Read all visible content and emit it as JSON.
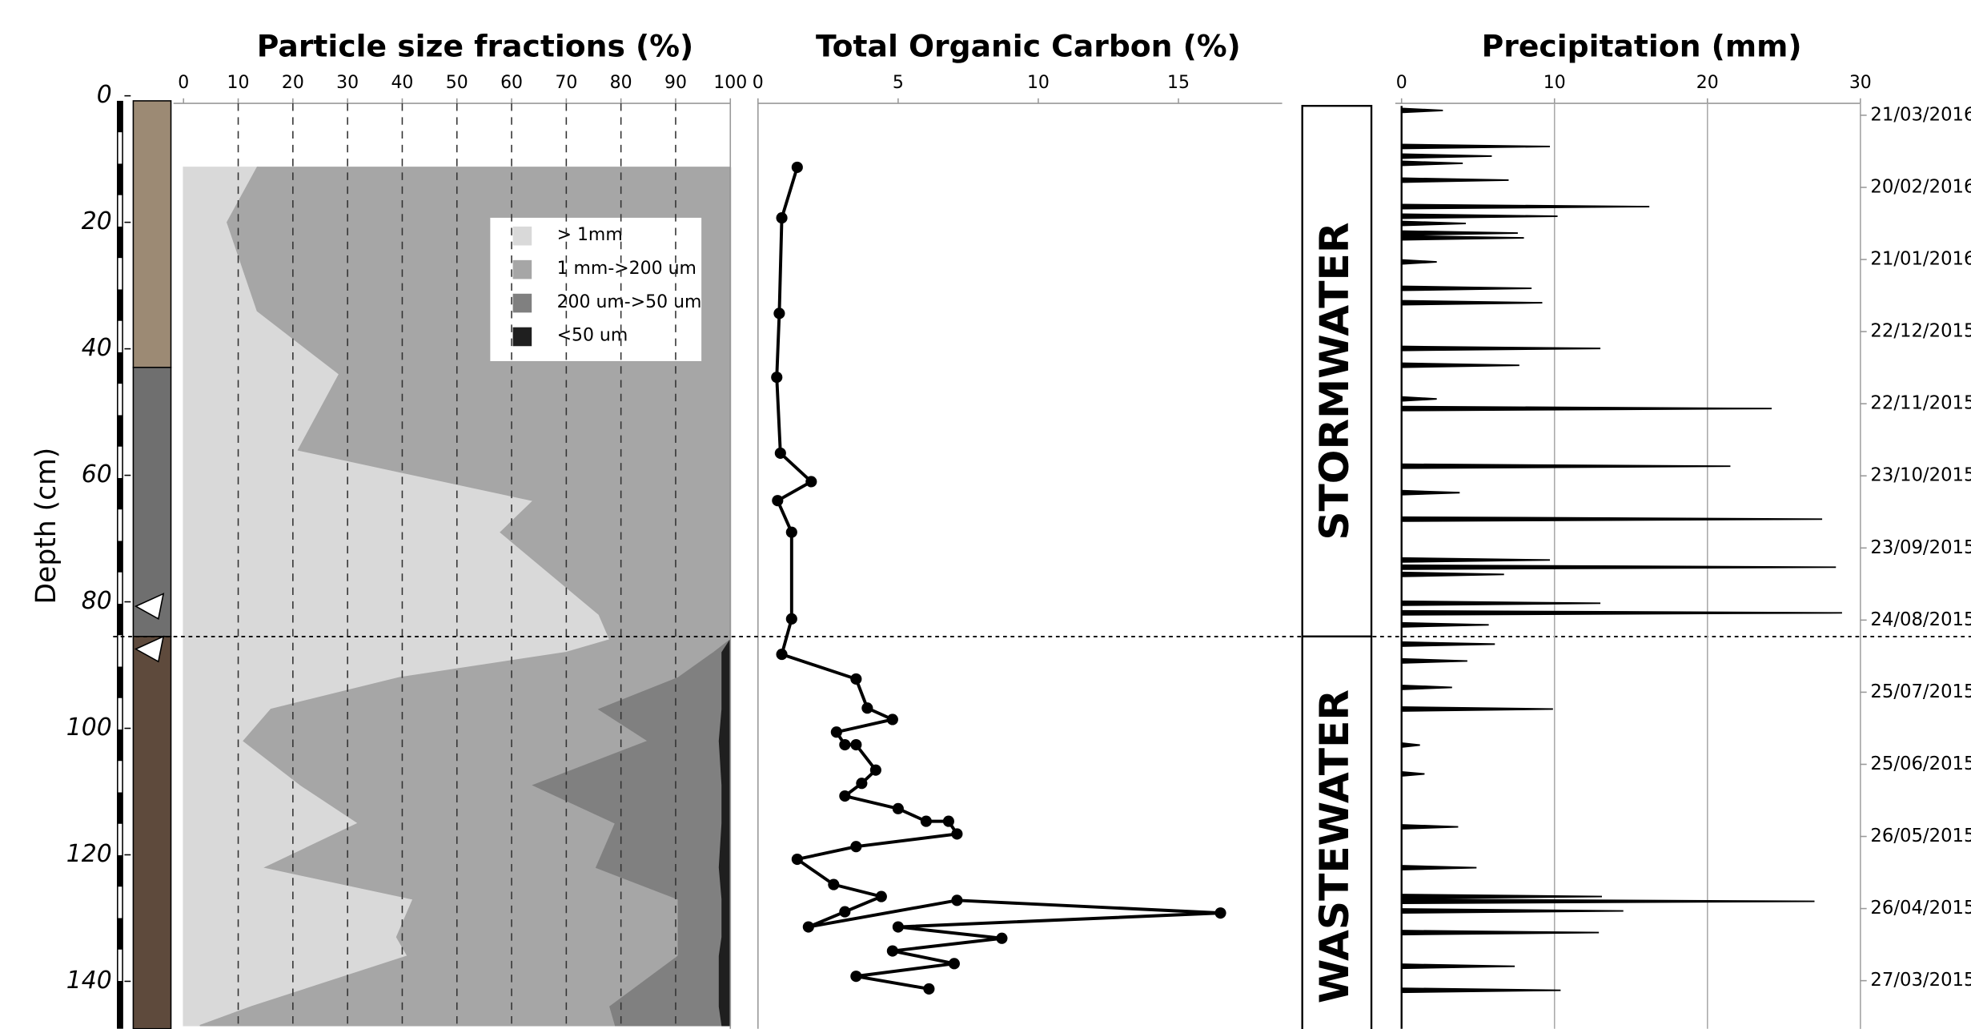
{
  "chart_data": [
    {
      "type": "area",
      "title": "Particle size fractions (%)",
      "y_label": "Depth (cm)",
      "y": [
        11.3,
        20,
        34,
        44,
        56,
        64,
        69,
        82,
        86,
        88,
        92,
        97,
        102,
        109,
        115,
        122,
        127,
        133,
        136,
        144,
        147
      ],
      "series": [
        {
          "name": "> 1mm",
          "color": "#d9d9d9",
          "values": [
            13.5,
            8,
            13.5,
            28.5,
            21,
            64,
            58,
            76,
            78,
            70,
            39.5,
            16,
            11,
            21.5,
            32,
            15,
            42,
            39,
            41,
            12.5,
            3
          ]
        },
        {
          "name": "1 mm->200 um",
          "color": "#a6a6a6",
          "values": [
            86.5,
            92,
            86.5,
            71.5,
            79,
            36,
            42,
            24,
            22,
            27,
            51,
            60,
            74,
            42.5,
            47,
            60.5,
            48.5,
            51.5,
            49.5,
            65.5,
            76
          ]
        },
        {
          "name": "200 um->50 um",
          "color": "#808080",
          "values": [
            0,
            0,
            0,
            0,
            0,
            0,
            0,
            0,
            0,
            1.5,
            8,
            22.5,
            13,
            34.5,
            19.5,
            22.5,
            8,
            8,
            7.5,
            20,
            19.5
          ]
        },
        {
          "name": "<50 um",
          "color": "#1f1f1f",
          "values": [
            0,
            0,
            0,
            0,
            0,
            0,
            0,
            0,
            0,
            1.5,
            1.5,
            1.5,
            2,
            1.5,
            1.5,
            2,
            1.5,
            1.5,
            2,
            2,
            1.5
          ]
        }
      ],
      "xlim": [
        0,
        100
      ],
      "xticks": [
        0,
        10,
        20,
        30,
        40,
        50,
        60,
        70,
        80,
        90,
        100
      ],
      "ylim": [
        0,
        147.5
      ],
      "yticks": [
        0,
        20,
        40,
        60,
        80,
        100,
        120,
        140
      ],
      "grid": true,
      "hline": 85.5
    },
    {
      "type": "line",
      "title": "Total Organic Carbon (%)",
      "color": "#000000",
      "values": [
        1.4,
        0.85,
        0.76,
        0.67,
        0.8,
        1.9,
        0.7,
        1.2,
        1.2,
        0.85,
        3.5,
        3.9,
        4.8,
        2.8,
        3.1,
        3.5,
        4.2,
        3.7,
        3.1,
        5.0,
        6.0,
        6.8,
        7.1,
        3.5,
        1.4,
        2.7,
        4.4,
        3.1,
        1.8,
        7.1,
        16.5,
        5.0,
        8.7,
        4.8,
        7.0,
        3.5,
        6.1
      ],
      "y": [
        11.3,
        19.3,
        34.4,
        44.5,
        56.5,
        61,
        64,
        69,
        82.7,
        88.3,
        92.2,
        96.8,
        98.6,
        100.6,
        102.6,
        102.6,
        106.6,
        108.7,
        110.7,
        112.7,
        114.7,
        114.7,
        116.7,
        118.7,
        120.7,
        124.7,
        126.6,
        129,
        131.4,
        127.2,
        129.2,
        131.4,
        133.2,
        135.2,
        137.2,
        139.2,
        141.2
      ],
      "xlim": [
        0,
        18.7
      ],
      "xticks": [
        0,
        5,
        10,
        15
      ],
      "ylim": [
        0,
        147.5
      ]
    },
    {
      "type": "bar",
      "orientation": "horizontal",
      "title": "Precipitation (mm)",
      "color": "#000000",
      "y": [
        "23/03/2016",
        "08/03/2016",
        "04/03/2016",
        "01/03/2016",
        "23/02/2016",
        "12/02/2016",
        "08/02/2016",
        "05/02/2016",
        "01/02/2016",
        "30/01/2016",
        "20/01/2016",
        "09/01/2016",
        "03/01/2016",
        "15/12/2015",
        "08/12/2015",
        "24/11/2015",
        "20/11/2015",
        "27/10/2015",
        "16/10/2015",
        "05/10/2015",
        "18/09/2015",
        "15/09/2015",
        "12/09/2015",
        "31/08/2015",
        "27/08/2015",
        "22/08/2015",
        "14/08/2015",
        "07/08/2015",
        "27/07/2015",
        "18/07/2015",
        "03/07/2015",
        "21/06/2015",
        "30/05/2015",
        "13/05/2015",
        "01/05/2015",
        "29/04/2015",
        "25/04/2015",
        "16/04/2015",
        "02/04/2015",
        "23/03/2015"
      ],
      "values": [
        2.7,
        9.7,
        5.9,
        4.0,
        7,
        16.2,
        10.2,
        4.2,
        7.6,
        8,
        2.3,
        8.5,
        9.2,
        13,
        7.7,
        2.3,
        24.2,
        21.5,
        3.8,
        27.5,
        9.7,
        28.4,
        6.7,
        13,
        28.8,
        5.7,
        6.1,
        4.3,
        3.3,
        9.9,
        1.2,
        1.5,
        3.7,
        4.9,
        13.1,
        27,
        14.5,
        12.9,
        7.4,
        10.4
      ],
      "xlim": [
        0,
        30
      ],
      "xticks": [
        0,
        10,
        20,
        30
      ],
      "ylim": [
        "27/03/2016",
        "07/03/2015"
      ],
      "yticks": [
        "21/03/2016",
        "20/02/2016",
        "21/01/2016",
        "22/12/2015",
        "22/11/2015",
        "23/10/2015",
        "23/09/2015",
        "24/08/2015",
        "25/07/2015",
        "25/06/2015",
        "26/05/2015",
        "26/04/2015",
        "27/03/2015"
      ],
      "grid": true,
      "annotations": [
        "STORMWATER",
        "WASTEWATER"
      ]
    }
  ]
}
